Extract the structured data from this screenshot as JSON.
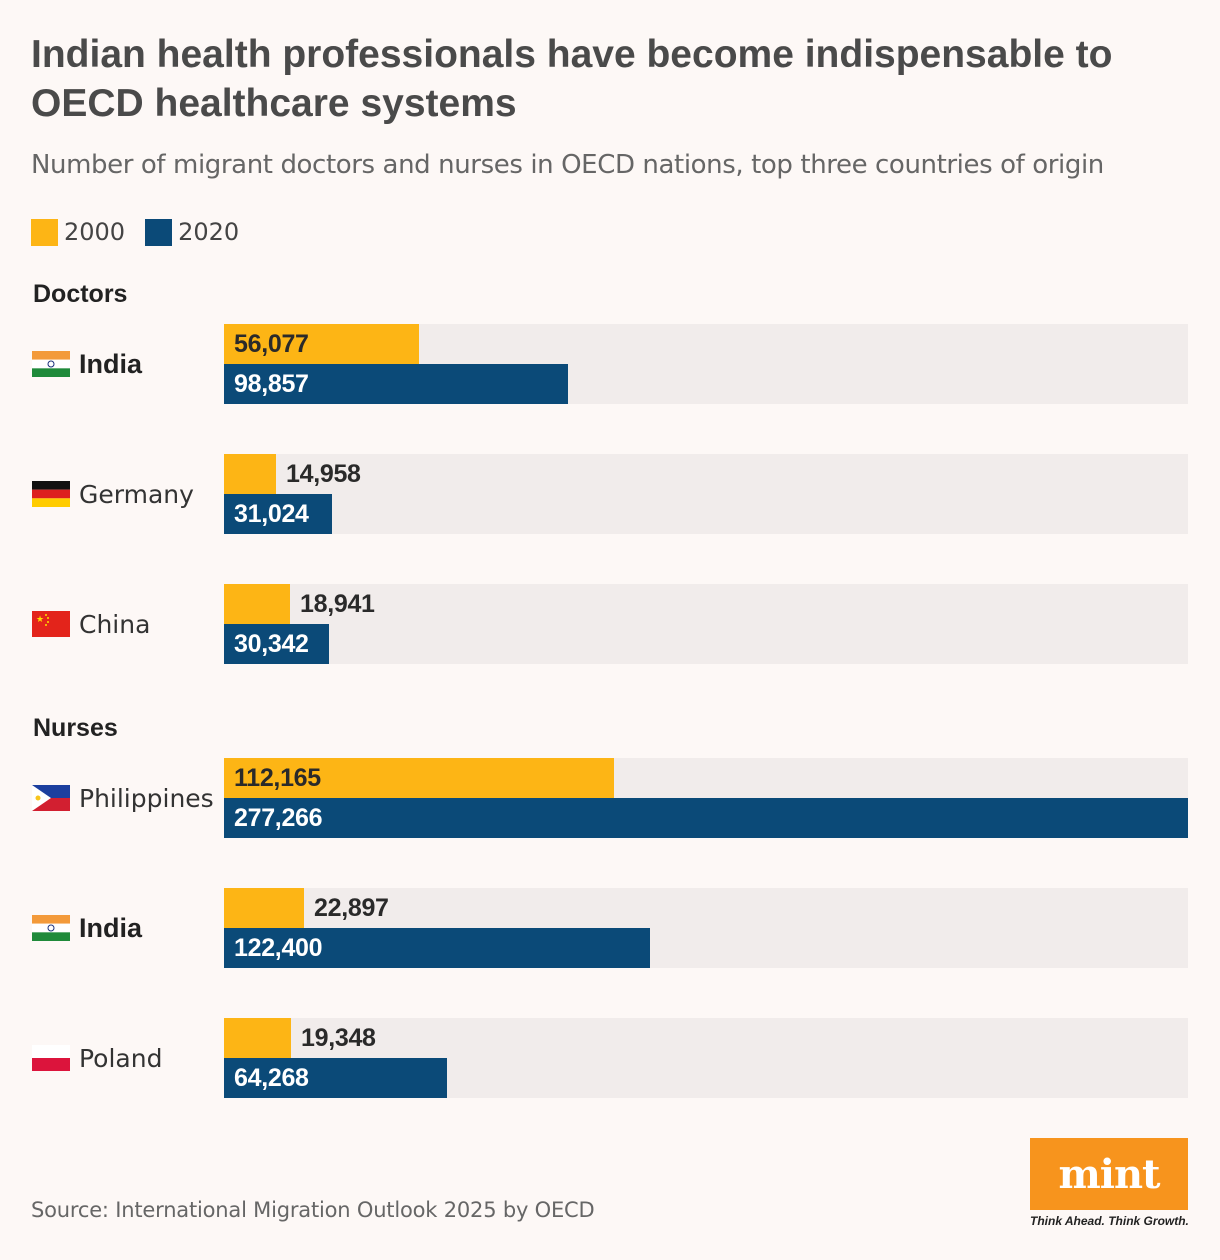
{
  "chart_data": {
    "type": "bar",
    "orientation": "horizontal",
    "title": "Indian health professionals have become indispensable to OECD healthcare systems",
    "subtitle": "Number of migrant doctors and nurses in OECD nations, top three countries of origin",
    "legend": [
      {
        "name": "2000",
        "color": "#fdb515"
      },
      {
        "name": "2020",
        "color": "#0b4a78"
      }
    ],
    "xlim": [
      0,
      277266
    ],
    "grid": false,
    "groups": [
      {
        "name": "Doctors",
        "rows": [
          {
            "country": "India",
            "flag": "india",
            "bold": true,
            "v2000": 56077,
            "v2020": 98857,
            "l2000": "56,077",
            "l2020": "98,857"
          },
          {
            "country": "Germany",
            "flag": "germany",
            "bold": false,
            "v2000": 14958,
            "v2020": 31024,
            "l2000": "14,958",
            "l2020": "31,024"
          },
          {
            "country": "China",
            "flag": "china",
            "bold": false,
            "v2000": 18941,
            "v2020": 30342,
            "l2000": "18,941",
            "l2020": "30,342"
          }
        ]
      },
      {
        "name": "Nurses",
        "rows": [
          {
            "country": "Philippines",
            "flag": "philippines",
            "bold": false,
            "v2000": 112165,
            "v2020": 277266,
            "l2000": "112,165",
            "l2020": "277,266"
          },
          {
            "country": "India",
            "flag": "india",
            "bold": true,
            "v2000": 22897,
            "v2020": 122400,
            "l2000": "22,897",
            "l2020": "122,400"
          },
          {
            "country": "Poland",
            "flag": "poland",
            "bold": false,
            "v2000": 19348,
            "v2020": 64268,
            "l2000": "19,348",
            "l2020": "64,268"
          }
        ]
      }
    ],
    "source": "Source: International Migration Outlook 2025 by OECD"
  },
  "branding": {
    "logo": "mint",
    "tagline": "Think Ahead. Think Growth."
  }
}
